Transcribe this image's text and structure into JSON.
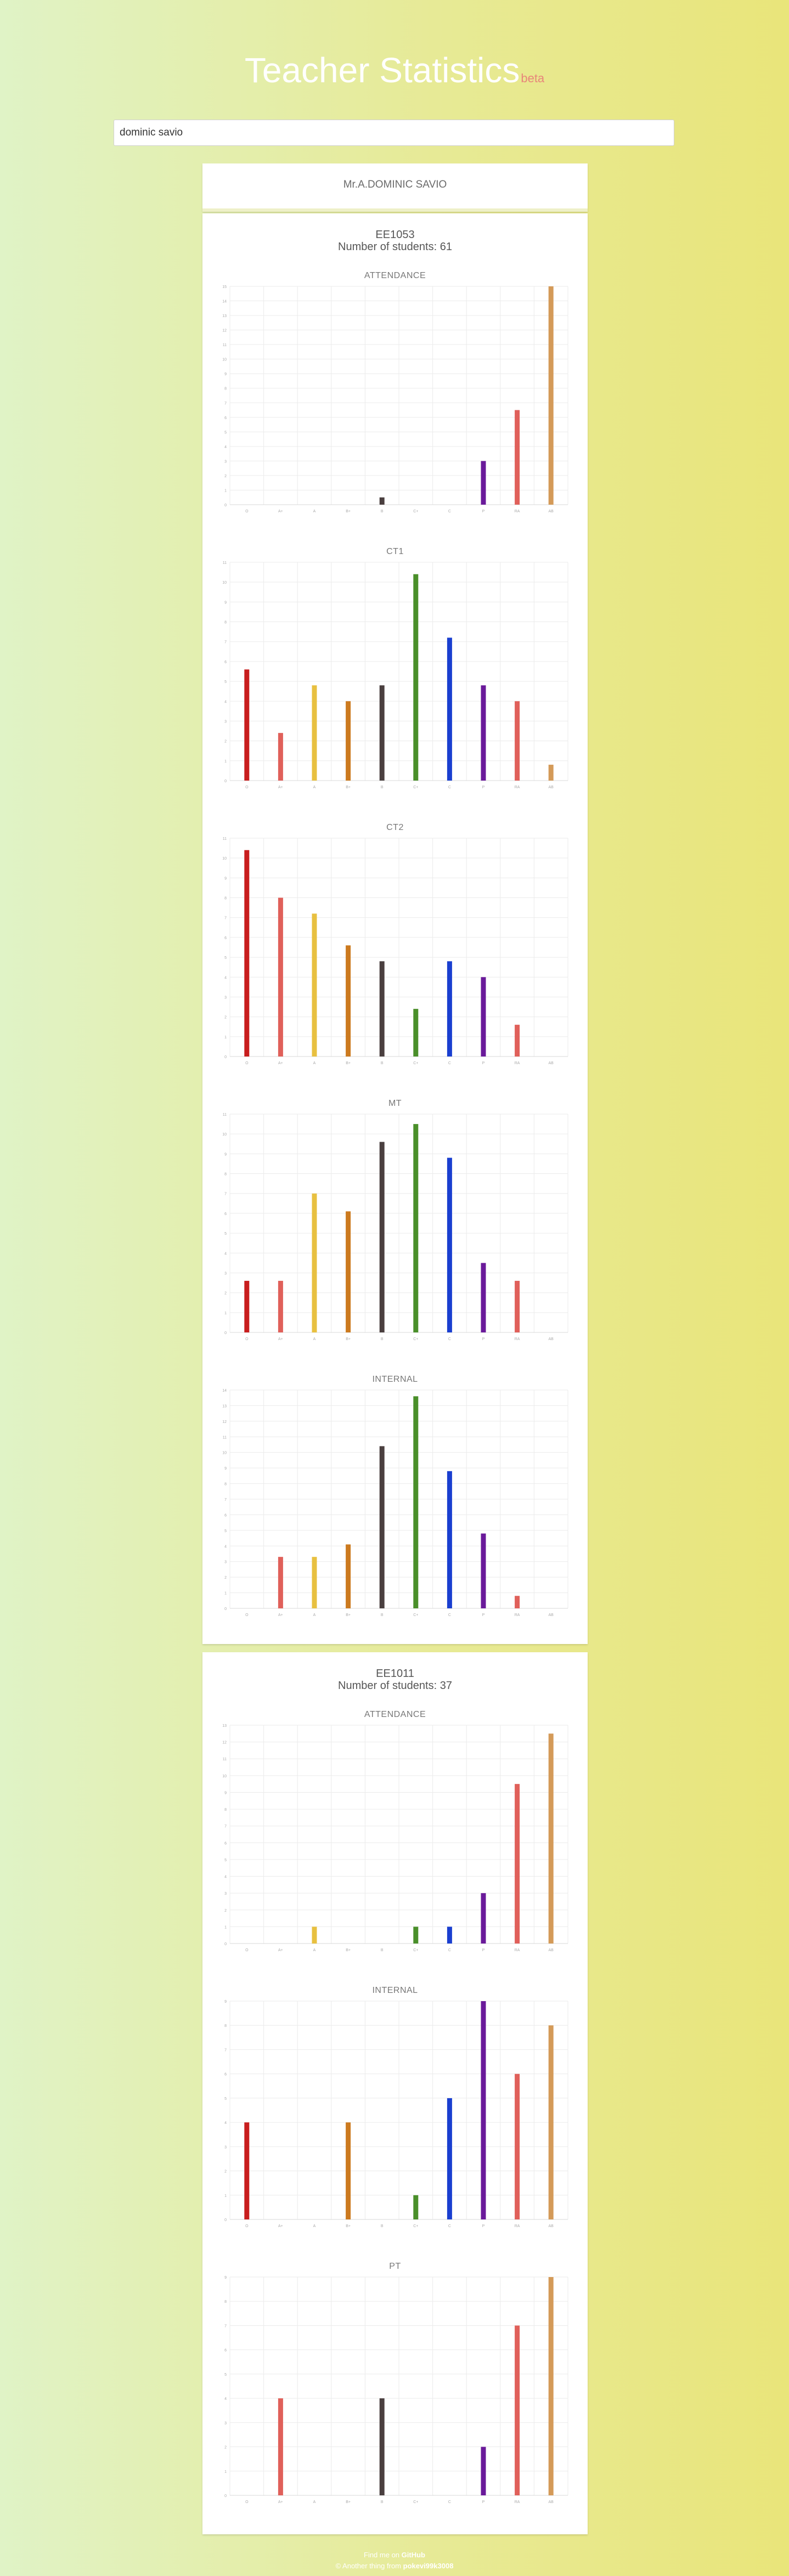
{
  "header": {
    "title": "Teacher Statistics",
    "badge": "beta"
  },
  "search": {
    "value": "dominic savio"
  },
  "teacher": {
    "name": "Mr.A.DOMINIC SAVIO"
  },
  "categories": [
    "O",
    "A+",
    "A",
    "B+",
    "B",
    "C+",
    "C",
    "P",
    "RA",
    "AB"
  ],
  "colors": [
    "#c81e1e",
    "#e0605a",
    "#e8c040",
    "#cc7a1f",
    "#4a3f3f",
    "#4a8f2a",
    "#1a3fd0",
    "#6a1a9a",
    "#e0605a",
    "#d49a58"
  ],
  "courses": [
    {
      "code": "EE1053",
      "students_label": "Number of students: 61",
      "charts": [
        {
          "title": "ATTENDANCE",
          "chart_data": {
            "type": "bar",
            "ylim": [
              0,
              15
            ],
            "categories": [
              "O",
              "A+",
              "A",
              "B+",
              "B",
              "C+",
              "C",
              "P",
              "RA",
              "AB"
            ],
            "values": [
              0,
              0,
              0,
              0,
              0.5,
              0,
              0,
              3,
              6.5,
              15
            ]
          }
        },
        {
          "title": "CT1",
          "chart_data": {
            "type": "bar",
            "ylim": [
              0,
              11
            ],
            "categories": [
              "O",
              "A+",
              "A",
              "B+",
              "B",
              "C+",
              "C",
              "P",
              "RA",
              "AB"
            ],
            "values": [
              5.6,
              2.4,
              4.8,
              4,
              4.8,
              10.4,
              7.2,
              4.8,
              4,
              0.8
            ]
          }
        },
        {
          "title": "CT2",
          "chart_data": {
            "type": "bar",
            "ylim": [
              0,
              11
            ],
            "categories": [
              "O",
              "A+",
              "A",
              "B+",
              "B",
              "C+",
              "C",
              "P",
              "RA",
              "AB"
            ],
            "values": [
              10.4,
              8,
              7.2,
              5.6,
              4.8,
              2.4,
              4.8,
              4,
              1.6,
              0
            ]
          }
        },
        {
          "title": "MT",
          "chart_data": {
            "type": "bar",
            "ylim": [
              0,
              11
            ],
            "categories": [
              "O",
              "A+",
              "A",
              "B+",
              "B",
              "C+",
              "C",
              "P",
              "RA",
              "AB"
            ],
            "values": [
              2.6,
              2.6,
              7,
              6.1,
              9.6,
              10.5,
              8.8,
              3.5,
              2.6,
              0
            ]
          }
        },
        {
          "title": "INTERNAL",
          "chart_data": {
            "type": "bar",
            "ylim": [
              0,
              14
            ],
            "categories": [
              "O",
              "A+",
              "A",
              "B+",
              "B",
              "C+",
              "C",
              "P",
              "RA",
              "AB"
            ],
            "values": [
              0,
              3.3,
              3.3,
              4.1,
              10.4,
              13.6,
              8.8,
              4.8,
              0.8,
              0
            ]
          }
        }
      ]
    },
    {
      "code": "EE1011",
      "students_label": "Number of students: 37",
      "charts": [
        {
          "title": "ATTENDANCE",
          "chart_data": {
            "type": "bar",
            "ylim": [
              0,
              13
            ],
            "categories": [
              "O",
              "A+",
              "A",
              "B+",
              "B",
              "C+",
              "C",
              "P",
              "RA",
              "AB"
            ],
            "values": [
              0,
              0,
              1,
              0,
              0,
              1,
              1,
              3,
              9.5,
              12.5
            ]
          }
        },
        {
          "title": "INTERNAL",
          "chart_data": {
            "type": "bar",
            "ylim": [
              0,
              9
            ],
            "categories": [
              "O",
              "A+",
              "A",
              "B+",
              "B",
              "C+",
              "C",
              "P",
              "RA",
              "AB"
            ],
            "values": [
              4,
              0,
              0,
              4,
              0,
              1,
              5,
              9,
              6,
              8
            ]
          }
        },
        {
          "title": "PT",
          "chart_data": {
            "type": "bar",
            "ylim": [
              0,
              9
            ],
            "categories": [
              "O",
              "A+",
              "A",
              "B+",
              "B",
              "C+",
              "C",
              "P",
              "RA",
              "AB"
            ],
            "values": [
              0,
              4,
              0,
              0,
              4,
              0,
              0,
              2,
              7,
              9
            ]
          }
        }
      ]
    }
  ],
  "footer": {
    "line1_prefix": "Find me on",
    "line1_link": "GitHub",
    "line2_prefix": "© Another thing from",
    "line2_link": "pokevi99k3008"
  }
}
